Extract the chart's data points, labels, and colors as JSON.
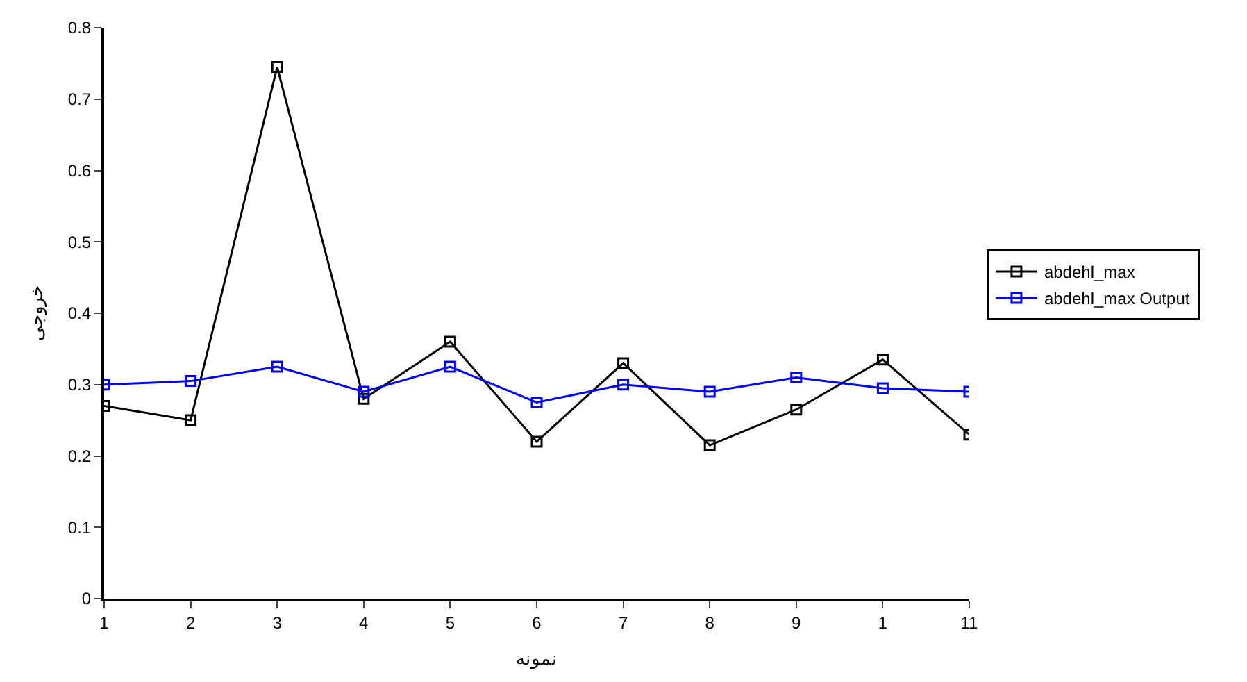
{
  "chart_data": {
    "type": "line",
    "xlabel": "نمونه",
    "ylabel": "خروجی",
    "categories": [
      "1",
      "2",
      "3",
      "4",
      "5",
      "6",
      "7",
      "8",
      "9",
      "1",
      "11"
    ],
    "series": [
      {
        "name": "abdehl_max",
        "color": "#000000",
        "values": [
          0.27,
          0.25,
          0.745,
          0.28,
          0.36,
          0.22,
          0.33,
          0.215,
          0.265,
          0.335,
          0.23
        ]
      },
      {
        "name": "abdehl_max Output",
        "color": "#0000ff",
        "values": [
          0.3,
          0.305,
          0.325,
          0.29,
          0.325,
          0.275,
          0.3,
          0.29,
          0.31,
          0.295,
          0.29
        ]
      }
    ],
    "ylim": [
      0,
      0.8
    ],
    "yticks": [
      0,
      0.1,
      0.2,
      0.3,
      0.4,
      0.5,
      0.6,
      0.7,
      0.8
    ],
    "grid": false,
    "legend": "right",
    "marker": "square",
    "line_style": "solid"
  }
}
